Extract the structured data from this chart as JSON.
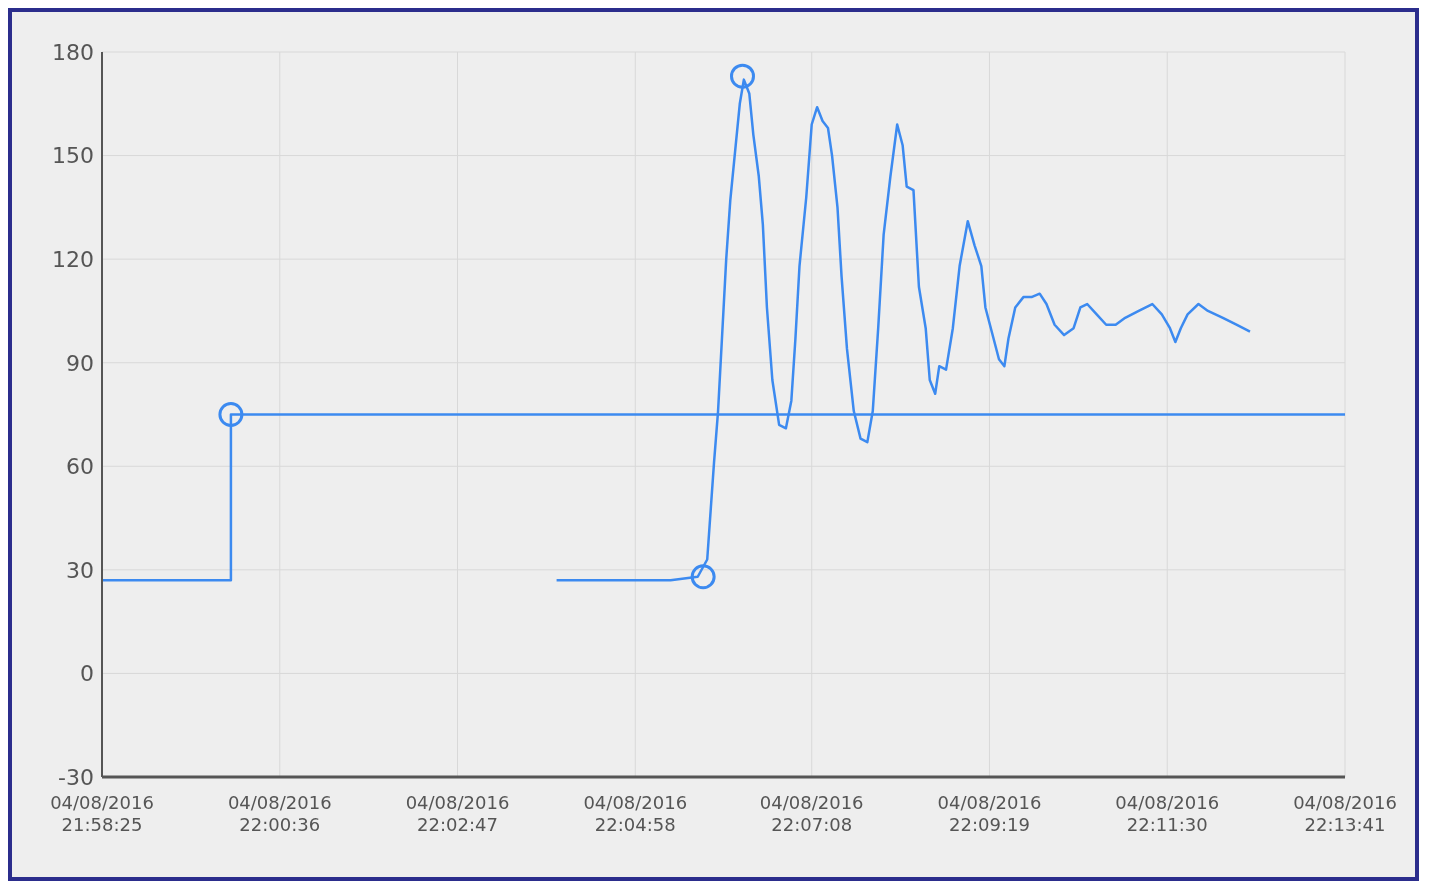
{
  "chart_data": {
    "type": "line",
    "xlim": [
      "2016-08-04T21:58:25",
      "2016-08-04T22:13:41"
    ],
    "xticks": [
      {
        "value": "2016-08-04T21:58:25",
        "label": "04/08/2016 21:58:25"
      },
      {
        "value": "2016-08-04T22:00:36",
        "label": "04/08/2016 22:00:36"
      },
      {
        "value": "2016-08-04T22:02:47",
        "label": "04/08/2016 22:02:47"
      },
      {
        "value": "2016-08-04T22:04:58",
        "label": "04/08/2016 22:04:58"
      },
      {
        "value": "2016-08-04T22:07:08",
        "label": "04/08/2016 22:07:08"
      },
      {
        "value": "2016-08-04T22:09:19",
        "label": "04/08/2016 22:09:19"
      },
      {
        "value": "2016-08-04T22:11:30",
        "label": "04/08/2016 22:11:30"
      },
      {
        "value": "2016-08-04T22:13:41",
        "label": "04/08/2016 22:13:41"
      }
    ],
    "ylim": [
      -30,
      180
    ],
    "yticks": [
      -30,
      0,
      30,
      60,
      90,
      120,
      150,
      180
    ],
    "grid": true,
    "series": [
      {
        "type": "step",
        "color": "#3c8af0",
        "marker": "none",
        "x": [
          "2016-08-04T21:58:25",
          "2016-08-04T22:00:00",
          "2016-08-04T22:13:41"
        ],
        "values": [
          27,
          75,
          75
        ]
      },
      {
        "color": "#3c8af0",
        "marker": "none",
        "x": [
          "2016-08-04T22:04:00",
          "2016-08-04T22:04:29",
          "2016-08-04T22:04:56",
          "2016-08-04T22:05:24",
          "2016-08-04T22:05:44",
          "2016-08-04T22:05:51",
          "2016-08-04T22:05:56",
          "2016-08-04T22:05:59",
          "2016-08-04T22:06:05",
          "2016-08-04T22:06:08",
          "2016-08-04T22:06:12",
          "2016-08-04T22:06:15",
          "2016-08-04T22:06:18",
          "2016-08-04T22:06:22",
          "2016-08-04T22:06:25",
          "2016-08-04T22:06:29",
          "2016-08-04T22:06:32",
          "2016-08-04T22:06:35",
          "2016-08-04T22:06:39",
          "2016-08-04T22:06:44",
          "2016-08-04T22:06:49",
          "2016-08-04T22:06:53",
          "2016-08-04T22:06:56",
          "2016-08-04T22:06:59",
          "2016-08-04T22:07:04",
          "2016-08-04T22:07:08",
          "2016-08-04T22:07:12",
          "2016-08-04T22:07:16",
          "2016-08-04T22:07:20",
          "2016-08-04T22:07:23",
          "2016-08-04T22:07:27",
          "2016-08-04T22:07:30",
          "2016-08-04T22:07:34",
          "2016-08-04T22:07:39",
          "2016-08-04T22:07:44",
          "2016-08-04T22:07:49",
          "2016-08-04T22:07:53",
          "2016-08-04T22:07:57",
          "2016-08-04T22:08:01",
          "2016-08-04T22:08:06",
          "2016-08-04T22:08:11",
          "2016-08-04T22:08:15",
          "2016-08-04T22:08:18",
          "2016-08-04T22:08:23",
          "2016-08-04T22:08:27",
          "2016-08-04T22:08:32",
          "2016-08-04T22:08:35",
          "2016-08-04T22:08:39",
          "2016-08-04T22:08:42",
          "2016-08-04T22:08:47",
          "2016-08-04T22:08:52",
          "2016-08-04T22:08:57",
          "2016-08-04T22:09:03",
          "2016-08-04T22:09:08",
          "2016-08-04T22:09:13",
          "2016-08-04T22:09:16",
          "2016-08-04T22:09:22",
          "2016-08-04T22:09:26",
          "2016-08-04T22:09:30",
          "2016-08-04T22:09:33",
          "2016-08-04T22:09:38",
          "2016-08-04T22:09:44",
          "2016-08-04T22:09:50",
          "2016-08-04T22:09:56",
          "2016-08-04T22:10:01",
          "2016-08-04T22:10:07",
          "2016-08-04T22:10:14",
          "2016-08-04T22:10:21",
          "2016-08-04T22:10:26",
          "2016-08-04T22:10:31",
          "2016-08-04T22:10:38",
          "2016-08-04T22:10:45",
          "2016-08-04T22:10:52",
          "2016-08-04T22:10:59",
          "2016-08-04T22:11:09",
          "2016-08-04T22:11:19",
          "2016-08-04T22:11:26",
          "2016-08-04T22:11:32",
          "2016-08-04T22:11:36",
          "2016-08-04T22:11:40",
          "2016-08-04T22:11:45",
          "2016-08-04T22:11:53",
          "2016-08-04T22:12:00",
          "2016-08-04T22:12:11",
          "2016-08-04T22:12:21",
          "2016-08-04T22:12:31"
        ],
        "values": [
          27,
          27,
          27,
          27,
          28,
          33,
          61,
          76,
          120,
          137,
          153,
          165,
          172,
          168,
          156,
          144,
          130,
          106,
          85,
          72,
          71,
          79,
          97,
          118,
          138,
          159,
          164,
          160,
          158,
          150,
          135,
          115,
          94,
          76,
          68,
          67,
          76,
          100,
          127,
          144,
          159,
          153,
          141,
          140,
          112,
          100,
          85,
          81,
          89,
          88,
          100,
          118,
          131,
          124,
          118,
          106,
          97,
          91,
          89,
          97,
          106,
          109,
          109,
          110,
          107,
          101,
          98,
          100,
          106,
          107,
          104,
          101,
          101,
          103,
          105,
          107,
          104,
          100,
          96,
          100,
          104,
          107,
          105,
          103,
          101,
          99
        ]
      },
      {
        "type": "scatter",
        "color": "#3c8af0",
        "marker": "circle",
        "x": [
          "2016-08-04T22:00:00",
          "2016-08-04T22:05:48",
          "2016-08-04T22:06:17"
        ],
        "values": [
          75,
          28,
          173
        ]
      }
    ]
  }
}
